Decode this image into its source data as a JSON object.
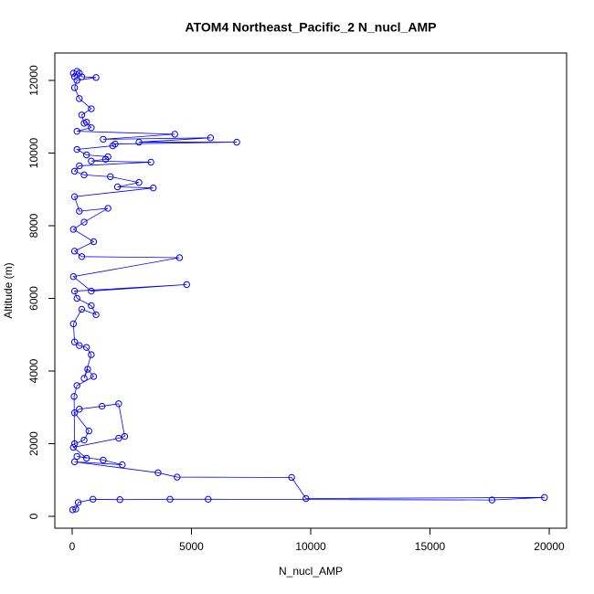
{
  "chart_data": {
    "type": "line",
    "title": "ATOM4 Northeast_Pacific_2 N_nucl_AMP",
    "x_label": "N_nucl_AMP",
    "y_label": "Altitude (m)",
    "color": "#0000ff",
    "markers": true,
    "x": [
      20,
      150,
      250,
      870,
      2000,
      4100,
      5700,
      17600,
      19800,
      9800,
      9200,
      4400,
      3600,
      100,
      2100,
      1300,
      200,
      600,
      50,
      1950,
      2200,
      1950,
      1250,
      300,
      100,
      700,
      500,
      100,
      80,
      200,
      900,
      650,
      500,
      800,
      600,
      300,
      100,
      50,
      400,
      1000,
      800,
      200,
      100,
      4800,
      800,
      50,
      4500,
      400,
      100,
      900,
      50,
      500,
      1500,
      300,
      100,
      3400,
      1900,
      2800,
      1600,
      500,
      100,
      300,
      3300,
      800,
      1400,
      1500,
      600,
      200,
      1700,
      1800,
      6900,
      2800,
      5800,
      1300,
      4300,
      200,
      800,
      600,
      500,
      400,
      800,
      300,
      100,
      200,
      1000,
      400,
      300,
      200,
      100,
      50
    ],
    "values": [
      180,
      200,
      380,
      470,
      460,
      470,
      470,
      450,
      520,
      490,
      1070,
      1080,
      1200,
      1500,
      1420,
      1550,
      1650,
      1600,
      1900,
      2150,
      2200,
      3100,
      3030,
      2950,
      2850,
      2350,
      2100,
      2000,
      3300,
      3600,
      3850,
      4050,
      3800,
      4450,
      4650,
      4700,
      4800,
      5300,
      5700,
      5550,
      5800,
      6000,
      6200,
      6380,
      6200,
      6600,
      7120,
      7150,
      7300,
      7560,
      7900,
      8100,
      8480,
      8400,
      8800,
      9040,
      9070,
      9190,
      9350,
      9400,
      9500,
      9650,
      9750,
      9780,
      9830,
      9900,
      9950,
      10100,
      10200,
      10250,
      10300,
      10300,
      10420,
      10380,
      10520,
      10600,
      10700,
      10850,
      10820,
      11050,
      11220,
      11500,
      11800,
      12000,
      12080,
      12100,
      12200,
      12250,
      12100,
      12200
    ],
    "xlim": [
      -728,
      20728
    ],
    "ylim": [
      -327,
      12755
    ],
    "xticks": [
      0,
      5000,
      10000,
      15000,
      20000
    ],
    "yticks": [
      0,
      2000,
      4000,
      6000,
      8000,
      10000,
      12000
    ]
  }
}
